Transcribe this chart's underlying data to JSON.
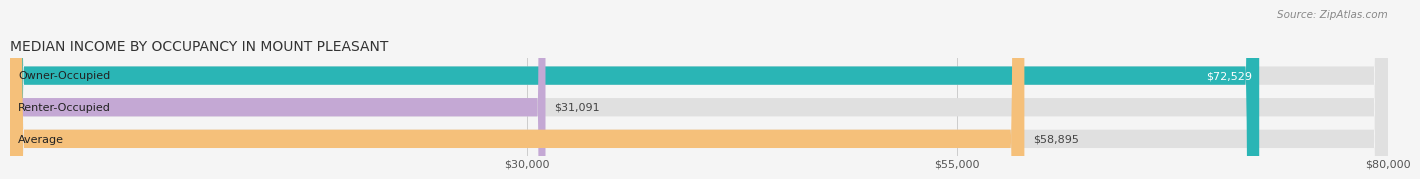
{
  "title": "MEDIAN INCOME BY OCCUPANCY IN MOUNT PLEASANT",
  "source": "Source: ZipAtlas.com",
  "categories": [
    "Owner-Occupied",
    "Renter-Occupied",
    "Average"
  ],
  "values": [
    72529,
    31091,
    58895
  ],
  "bar_colors": [
    "#2ab5b5",
    "#c4a8d4",
    "#f5c07a"
  ],
  "value_labels": [
    "$72,529",
    "$31,091",
    "$58,895"
  ],
  "value_label_inside": [
    true,
    false,
    false
  ],
  "xlim": [
    0,
    80000
  ],
  "xticks": [
    30000,
    55000,
    80000
  ],
  "xtick_labels": [
    "$30,000",
    "$55,000",
    "$80,000"
  ],
  "title_fontsize": 10,
  "source_fontsize": 7.5,
  "label_fontsize": 8,
  "value_fontsize": 8,
  "tick_fontsize": 8,
  "background_color": "#f5f5f5",
  "bar_background_color": "#e0e0e0",
  "bar_height": 0.58
}
